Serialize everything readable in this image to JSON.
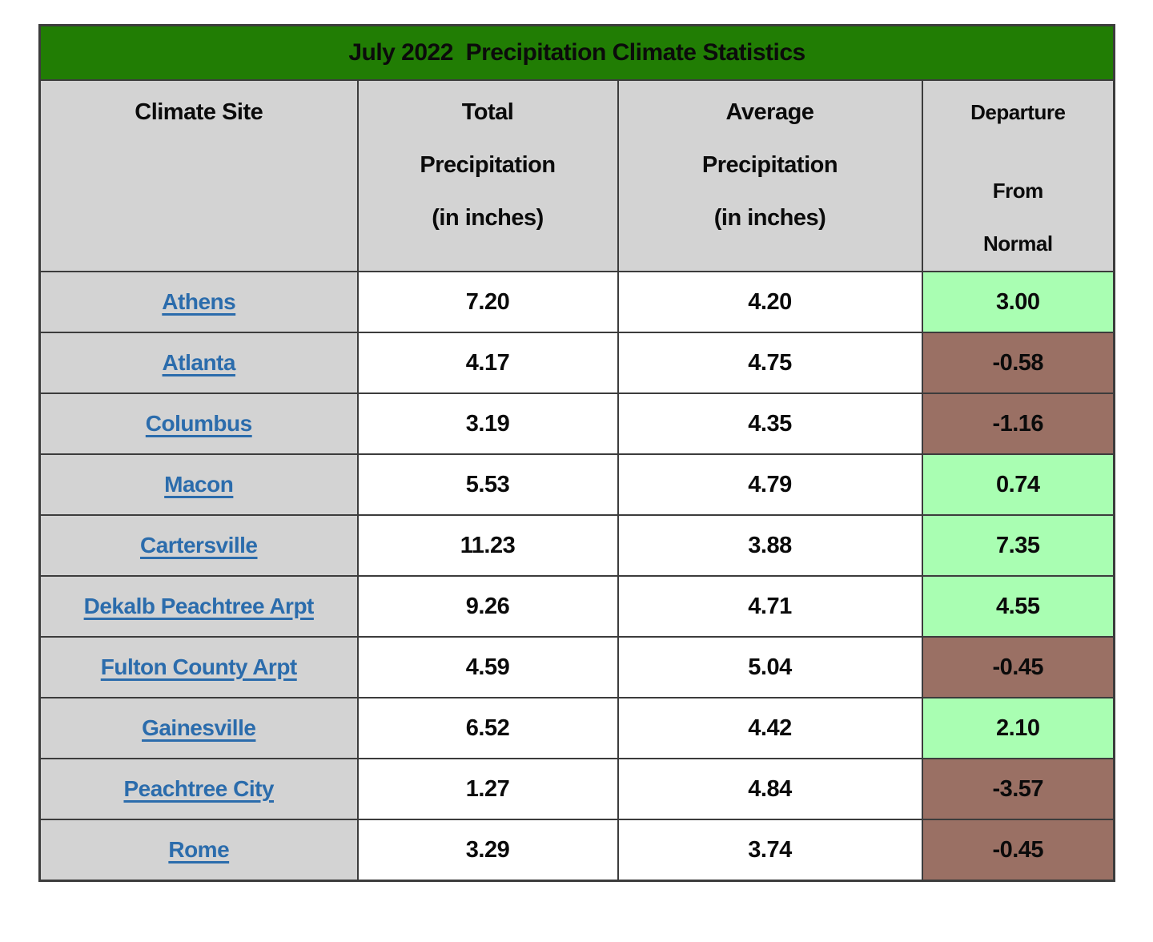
{
  "title": "July 2022  Precipitation Climate Statistics",
  "colors": {
    "title_bar_green": "#217d04",
    "header_gray": "#d3d3d3",
    "above_normal_green": "#a9feb2",
    "below_normal_brown": "#9a7064",
    "link_blue": "#2b6cac",
    "border_gray": "#3c3c3c"
  },
  "table": {
    "headers": {
      "site": {
        "line1": "Climate Site"
      },
      "total": {
        "line1": "Total",
        "line2": "Precipitation",
        "line3": "(in inches)"
      },
      "average": {
        "line1": "Average",
        "line2": "Precipitation",
        "line3": "(in inches)"
      },
      "departure": {
        "line1": "Departure",
        "line2": "From",
        "line3": "Normal"
      }
    },
    "rows": [
      {
        "site": "Athens",
        "total": "7.20",
        "average": "4.20",
        "departure": "3.00",
        "departure_status": "above"
      },
      {
        "site": "Atlanta",
        "total": "4.17",
        "average": "4.75",
        "departure": "-0.58",
        "departure_status": "below"
      },
      {
        "site": "Columbus",
        "total": "3.19",
        "average": "4.35",
        "departure": "-1.16",
        "departure_status": "below"
      },
      {
        "site": "Macon",
        "total": "5.53",
        "average": "4.79",
        "departure": "0.74",
        "departure_status": "above"
      },
      {
        "site": "Cartersville",
        "total": "11.23",
        "average": "3.88",
        "departure": "7.35",
        "departure_status": "above"
      },
      {
        "site": "Dekalb Peachtree Arpt",
        "total": "9.26",
        "average": "4.71",
        "departure": "4.55",
        "departure_status": "above"
      },
      {
        "site": "Fulton County Arpt",
        "total": "4.59",
        "average": "5.04",
        "departure": "-0.45",
        "departure_status": "below"
      },
      {
        "site": "Gainesville",
        "total": "6.52",
        "average": "4.42",
        "departure": "2.10",
        "departure_status": "above"
      },
      {
        "site": "Peachtree City",
        "total": "1.27",
        "average": "4.84",
        "departure": "-3.57",
        "departure_status": "below"
      },
      {
        "site": "Rome",
        "total": "3.29",
        "average": "3.74",
        "departure": "-0.45",
        "departure_status": "below"
      }
    ]
  },
  "chart_data": {
    "type": "table",
    "title": "July 2022  Precipitation Climate Statistics",
    "columns": [
      "Climate Site",
      "Total Precipitation (in inches)",
      "Average Precipitation (in inches)",
      "Departure From Normal"
    ],
    "rows": [
      [
        "Athens",
        7.2,
        4.2,
        3.0
      ],
      [
        "Atlanta",
        4.17,
        4.75,
        -0.58
      ],
      [
        "Columbus",
        3.19,
        4.35,
        -1.16
      ],
      [
        "Macon",
        5.53,
        4.79,
        0.74
      ],
      [
        "Cartersville",
        11.23,
        3.88,
        7.35
      ],
      [
        "Dekalb Peachtree Arpt",
        9.26,
        4.71,
        4.55
      ],
      [
        "Fulton County Arpt",
        4.59,
        5.04,
        -0.45
      ],
      [
        "Gainesville",
        6.52,
        4.42,
        2.1
      ],
      [
        "Peachtree City",
        1.27,
        4.84,
        -3.57
      ],
      [
        "Rome",
        3.29,
        3.74,
        -0.45
      ]
    ],
    "legend": {
      "green_cells": "departure above normal (positive)",
      "brown_cells": "departure below normal (negative)"
    }
  }
}
